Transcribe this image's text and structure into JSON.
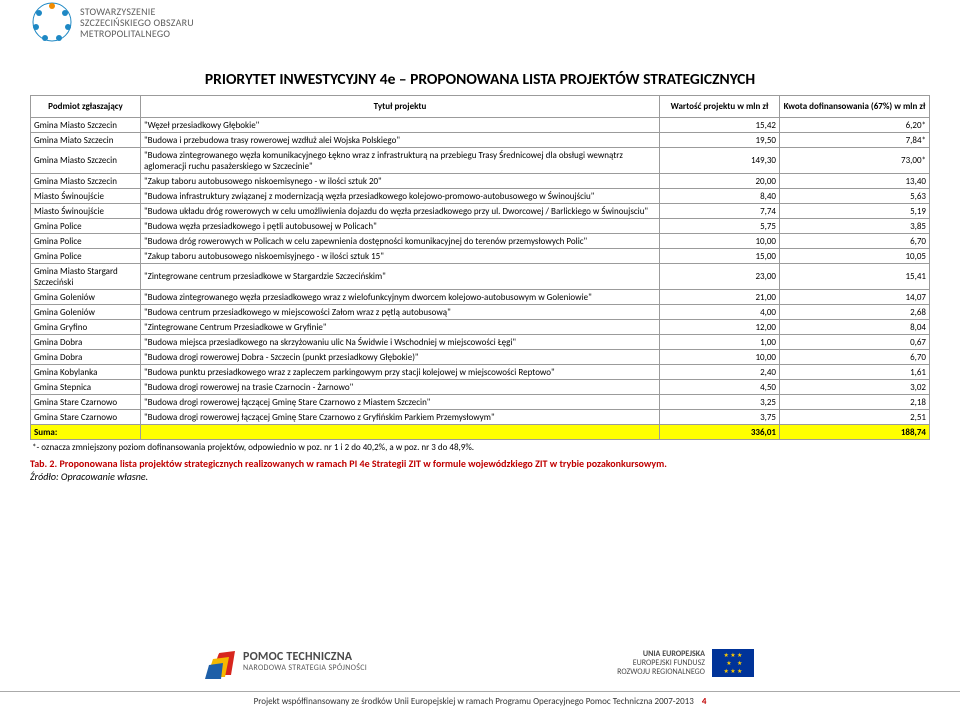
{
  "top_logo": {
    "line1": "STOWARZYSZENIE",
    "line2": "SZCZECIŃSKIEGO OBSZARU",
    "line3": "METROPOLITALNEGO"
  },
  "title": "PRIORYTET INWESTYCYJNY 4e – PROPONOWANA LISTA PROJEKTÓW STRATEGICZNYCH",
  "columns": {
    "entity": "Podmiot zgłaszający",
    "project": "Tytuł projektu",
    "value": "Wartość projektu w mln zł",
    "funding": "Kwota dofinansowania (67%) w mln zł"
  },
  "rows": [
    {
      "entity": "Gmina Miasto Szczecin",
      "title": "\"Węzeł przesiadkowy Głębokie\"",
      "value": "15,42",
      "funding": "6,20*"
    },
    {
      "entity": "Gmina Miato Szczecin",
      "title": "\"Budowa i przebudowa trasy rowerowej wzdłuż alei Wojska Polskiego\"",
      "value": "19,50",
      "funding": "7,84*"
    },
    {
      "entity": "Gmina Miasto Szczecin",
      "title": "\"Budowa zintegrowanego węzła komunikacyjnego Łękno wraz z infrastrukturą na przebiegu Trasy Średnicowej dla obsługi wewnątrz aglomeracji ruchu pasażerskiego w Szczecinie\"",
      "value": "149,30",
      "funding": "73,00*"
    },
    {
      "entity": "Gmina Miasto Szczecin",
      "title": "\"Zakup taboru autobusowego niskoemisynego - w ilości sztuk 20\"",
      "value": "20,00",
      "funding": "13,40"
    },
    {
      "entity": "Miasto Świnoujście",
      "title": "\"Budowa infrastruktury związanej z modernizacją węzła przesiadkowego kolejowo-promowo-autobusowego w Świnoujściu\"",
      "value": "8,40",
      "funding": "5,63"
    },
    {
      "entity": "Miasto Świnoujście",
      "title": "\"Budowa układu dróg rowerowych w celu umożliwienia dojazdu do węzła przesiadkowego przy ul. Dworcowej / Barlickiego w Świnoujsciu\"",
      "value": "7,74",
      "funding": "5,19"
    },
    {
      "entity": "Gmina Police",
      "title": "\"Budowa węzła przesiadkowego i pętli autobusowej w Policach\"",
      "value": "5,75",
      "funding": "3,85"
    },
    {
      "entity": "Gmina Police",
      "title": "\"Budowa dróg rowerowych w Policach w celu zapewnienia dostępności komunikacyjnej do terenów przemysłowych Polic\"",
      "value": "10,00",
      "funding": "6,70"
    },
    {
      "entity": "Gmina Police",
      "title": "\"Zakup taboru autobusowego niskoemisyjnego - w ilości sztuk 15\"",
      "value": "15,00",
      "funding": "10,05"
    },
    {
      "entity": "Gmina Miasto Stargard Szczeciński",
      "title": "\"Zintegrowane centrum przesiadkowe w Stargardzie Szczecińskim\"",
      "value": "23,00",
      "funding": "15,41"
    },
    {
      "entity": "Gmina Goleniów",
      "title": "\"Budowa zintegrowanego węzła przesiadkowego wraz z wielofunkcyjnym dworcem kolejowo-autobusowym w Goleniowie\"",
      "value": "21,00",
      "funding": "14,07"
    },
    {
      "entity": "Gmina Goleniów",
      "title": "\"Budowa centrum przesiadkowego w miejscowości Załom wraz z pętlą autobusową\"",
      "value": "4,00",
      "funding": "2,68"
    },
    {
      "entity": "Gmina Gryfino",
      "title": "\"Zintegrowane Centrum Przesiadkowe w Gryfinie\"",
      "value": "12,00",
      "funding": "8,04"
    },
    {
      "entity": "Gmina Dobra",
      "title": "\"Budowa miejsca przesiadkowego na skrzyżowaniu ulic Na Świdwie i Wschodniej w miejscowości Łęgi\"",
      "value": "1,00",
      "funding": "0,67"
    },
    {
      "entity": "Gmina Dobra",
      "title": "\"Budowa drogi rowerowej Dobra - Szczecin (punkt przesiadkowy Głębokie)\"",
      "value": "10,00",
      "funding": "6,70"
    },
    {
      "entity": "Gmina Kobylanka",
      "title": "\"Budowa punktu przesiadkowego wraz z zapleczem parkingowym przy stacji kolejowej w miejscowości Reptowo\"",
      "value": "2,40",
      "funding": "1,61"
    },
    {
      "entity": "Gmina Stepnica",
      "title": "\"Budowa drogi rowerowej na trasie Czarnocin - Żarnowo\"",
      "value": "4,50",
      "funding": "3,02"
    },
    {
      "entity": "Gmina Stare Czarnowo",
      "title": "\"Budowa drogi rowerowej łączącej Gminę Stare Czarnowo z Miastem Szczecin\"",
      "value": "3,25",
      "funding": "2,18"
    },
    {
      "entity": "Gmina Stare Czarnowo",
      "title": "\"Budowa drogi rowerowej łączącej Gminę Stare Czarnowo z Gryfińskim Parkiem Przemysłowym\"",
      "value": "3,75",
      "funding": "2,51"
    }
  ],
  "sum": {
    "label": "Suma:",
    "value": "336,01",
    "funding": "188,74"
  },
  "note_star": "*- oznacza zmniejszony poziom dofinansowania projektów, odpowiednio w poz. nr 1 i 2 do 40,2%, a w poz. nr 3 do 48,9%.",
  "tab2_label": "Tab. 2.",
  "tab2_text": "Proponowana lista projektów strategicznych realizowanych w ramach PI 4e Strategii ZIT w formule wojewódzkiego ZIT w trybie pozakonkursowym.",
  "zrodlo": "Źródło: Opracowanie własne.",
  "pomoc": {
    "l1": "POMOC TECHNICZNA",
    "l2": "NARODOWA STRATEGIA SPÓJNOŚCI"
  },
  "eu": {
    "l1": "UNIA EUROPEJSKA",
    "l2": "EUROPEJSKI FUNDUSZ",
    "l3": "ROZWOJU REGIONALNEGO"
  },
  "footer": "Projekt współfinansowany ze środków Unii Europejskiej w ramach Programu Operacyjnego Pomoc Techniczna 2007-2013",
  "page_num": "4",
  "colors": {
    "border": "#9b9b9b",
    "sum_bg": "#ffff00",
    "red": "#c00000",
    "eu_blue": "#003399",
    "eu_gold": "#ffcc00"
  }
}
